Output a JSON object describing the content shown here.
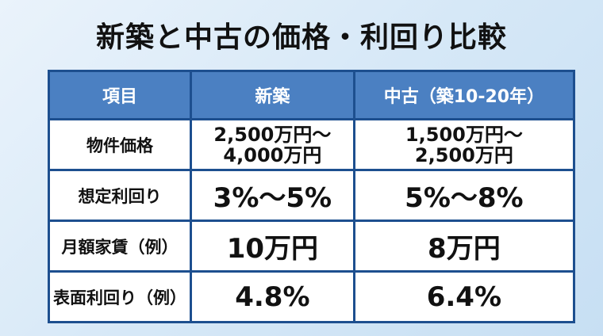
{
  "title": "新築と中古の価格・利回り比較",
  "table": {
    "headers": [
      "項目",
      "新築",
      "中古（築10-20年）"
    ],
    "rows": [
      {
        "label": "物件価格",
        "new": "2,500万円〜\n4,000万円",
        "used": "1,500万円〜\n2,500万円"
      },
      {
        "label": "想定利回り",
        "new": "3%〜5%",
        "used": "5%〜8%"
      },
      {
        "label": "月額家賃（例）",
        "new": "10万円",
        "used": "8万円"
      },
      {
        "label": "表面利回り（例）",
        "new": "4.8%",
        "used": "6.4%"
      }
    ]
  },
  "colors": {
    "header_bg": "#4b80c2",
    "border": "#1d4f8f"
  }
}
